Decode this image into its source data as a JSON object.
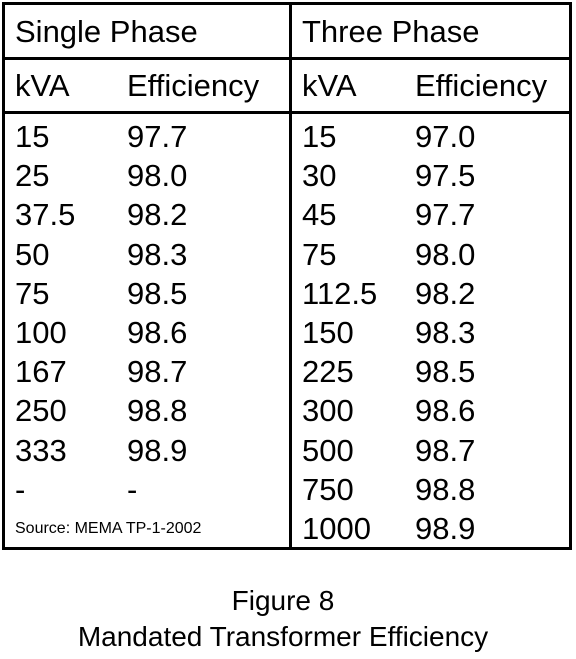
{
  "table": {
    "single_phase": {
      "title": "Single Phase",
      "kva_header": "kVA",
      "efficiency_header": "Efficiency",
      "rows": [
        {
          "kva": "15",
          "efficiency": "97.7"
        },
        {
          "kva": "25",
          "efficiency": "98.0"
        },
        {
          "kva": "37.5",
          "efficiency": "98.2"
        },
        {
          "kva": "50",
          "efficiency": "98.3"
        },
        {
          "kva": "75",
          "efficiency": "98.5"
        },
        {
          "kva": "100",
          "efficiency": "98.6"
        },
        {
          "kva": "167",
          "efficiency": "98.7"
        },
        {
          "kva": "250",
          "efficiency": "98.8"
        },
        {
          "kva": "333",
          "efficiency": "98.9"
        },
        {
          "kva": "-",
          "efficiency": "-"
        }
      ],
      "source": "Source: MEMA TP-1-2002"
    },
    "three_phase": {
      "title": "Three Phase",
      "kva_header": "kVA",
      "efficiency_header": "Efficiency",
      "rows": [
        {
          "kva": "15",
          "efficiency": "97.0"
        },
        {
          "kva": "30",
          "efficiency": "97.5"
        },
        {
          "kva": "45",
          "efficiency": "97.7"
        },
        {
          "kva": "75",
          "efficiency": "98.0"
        },
        {
          "kva": "112.5",
          "efficiency": "98.2"
        },
        {
          "kva": "150",
          "efficiency": "98.3"
        },
        {
          "kva": "225",
          "efficiency": "98.5"
        },
        {
          "kva": "300",
          "efficiency": "98.6"
        },
        {
          "kva": "500",
          "efficiency": "98.7"
        },
        {
          "kva": "750",
          "efficiency": "98.8"
        },
        {
          "kva": "1000",
          "efficiency": "98.9"
        }
      ]
    }
  },
  "caption": {
    "line1": "Figure 8",
    "line2": "Mandated Transformer Efficiency"
  }
}
